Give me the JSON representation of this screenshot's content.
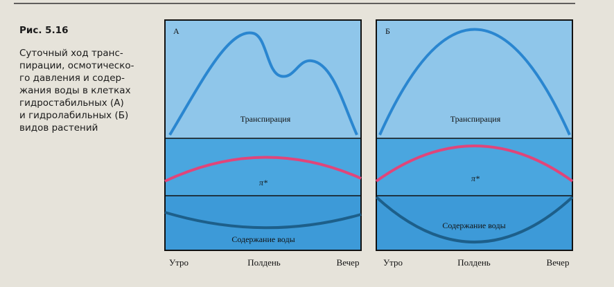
{
  "figure": {
    "number": "Рис. 5.16",
    "caption_lines": [
      "Суточный ход транс-",
      "пирации, осмотическо-",
      "го давления и содер-",
      "жания воды в клетках",
      "гидростабильных (А)",
      "и гидролабильных (Б)",
      "видов растений"
    ],
    "panels": [
      {
        "label": "А",
        "rows": [
          "Транспирация",
          "π*",
          "Содержание воды"
        ],
        "x_labels": [
          "Утро",
          "Полдень",
          "Вечер"
        ]
      },
      {
        "label": "Б",
        "rows": [
          "Транспирация",
          "π*",
          "Содержание воды"
        ],
        "x_labels": [
          "Утро",
          "Полдень",
          "Вечер"
        ]
      }
    ]
  }
}
